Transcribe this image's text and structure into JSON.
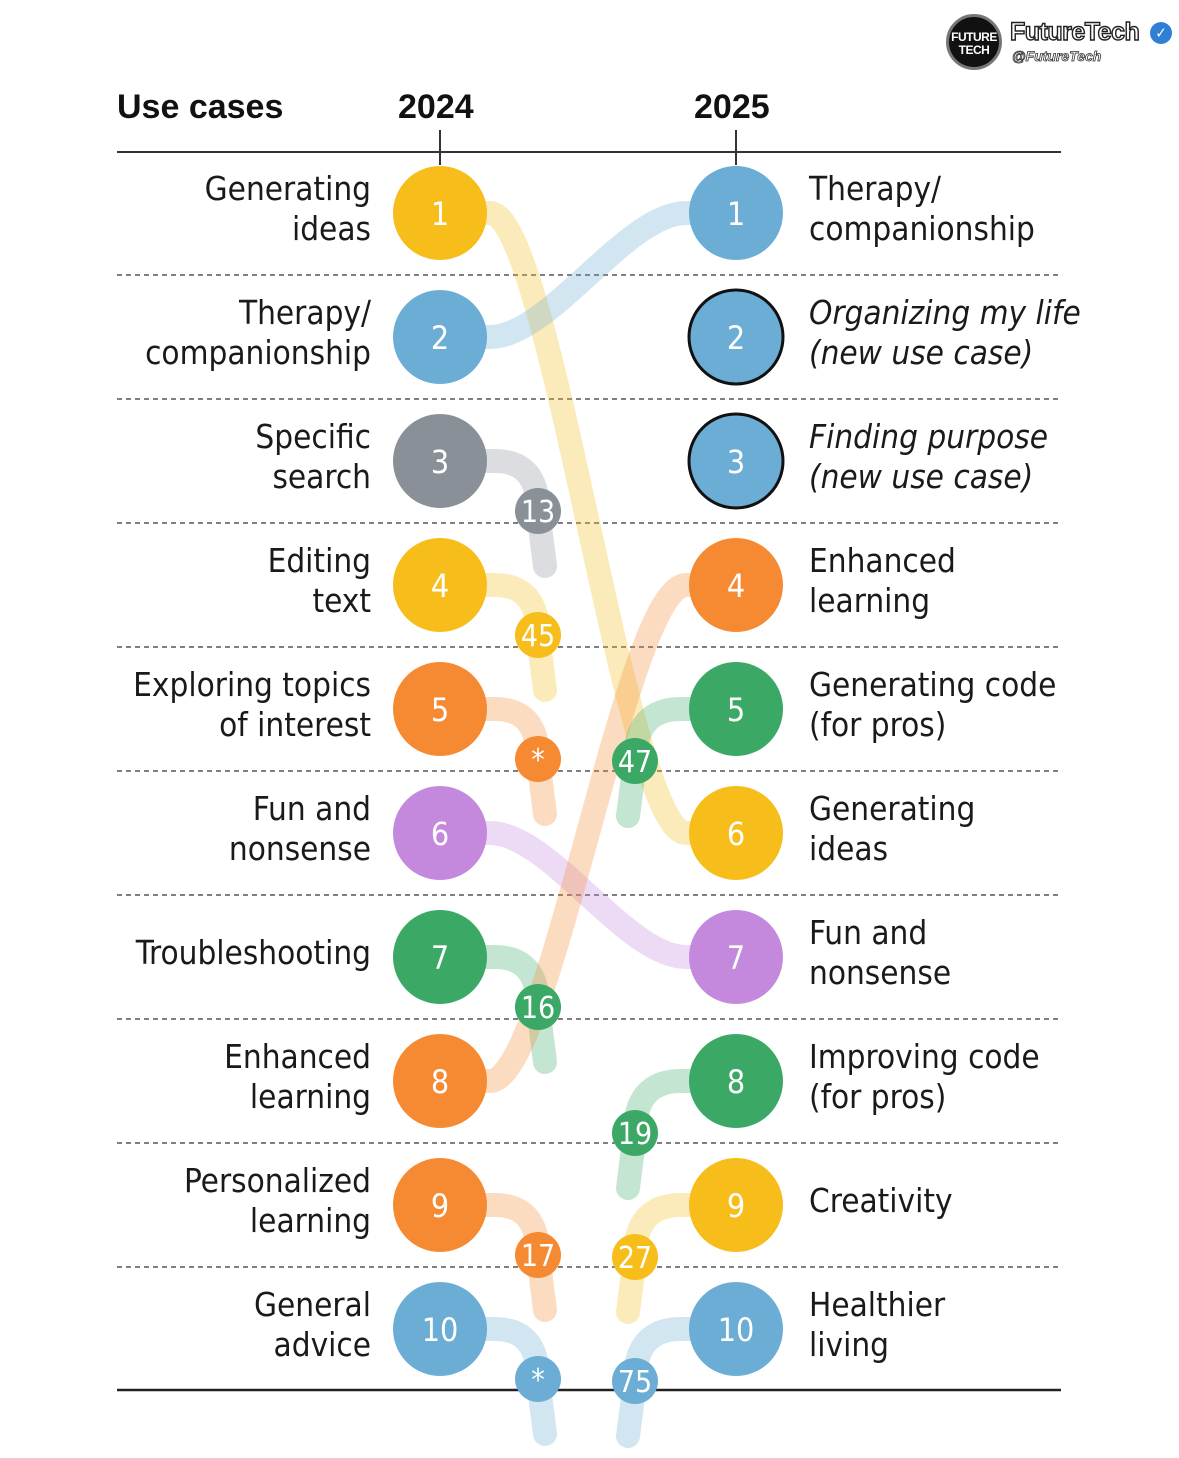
{
  "brand": {
    "name": "FutureTech",
    "handle": "@FutureTech",
    "logo_text_top": "FUTURE",
    "logo_text_bottom": "TECH",
    "verified_icon": "verified-check-icon"
  },
  "headers": {
    "use_cases": "Use cases",
    "year_left": "2024",
    "year_right": "2025"
  },
  "colors": {
    "yellow": "#f6bd1b",
    "blue": "#6badd5",
    "gray": "#8a9097",
    "orange": "#f58a32",
    "purple": "#c489dd",
    "green": "#3ba866"
  },
  "ranks_2024": [
    {
      "rank": "1",
      "label": "Generating\nideas",
      "color": "yellow",
      "rank_2025": "6"
    },
    {
      "rank": "2",
      "label": "Therapy/\ncompanionship",
      "color": "blue",
      "rank_2025": "1"
    },
    {
      "rank": "3",
      "label": "Specific\nsearch",
      "color": "gray",
      "rank_2025": "13"
    },
    {
      "rank": "4",
      "label": "Editing\ntext",
      "color": "yellow",
      "rank_2025": "45"
    },
    {
      "rank": "5",
      "label": "Exploring topics\nof interest",
      "color": "orange",
      "rank_2025": "*"
    },
    {
      "rank": "6",
      "label": "Fun and\nnonsense",
      "color": "purple",
      "rank_2025": "7"
    },
    {
      "rank": "7",
      "label": "Troubleshooting",
      "color": "green",
      "rank_2025": "16"
    },
    {
      "rank": "8",
      "label": "Enhanced\nlearning",
      "color": "orange",
      "rank_2025": "4"
    },
    {
      "rank": "9",
      "label": "Personalized\nlearning",
      "color": "orange",
      "rank_2025": "17"
    },
    {
      "rank": "10",
      "label": "General\nadvice",
      "color": "blue",
      "rank_2025": "*"
    }
  ],
  "ranks_2025": [
    {
      "rank": "1",
      "label": "Therapy/\ncompanionship",
      "color": "blue",
      "new_use_case": false,
      "rank_2024": "2"
    },
    {
      "rank": "2",
      "label": "Organizing my life\n(new use case)",
      "color": "blue",
      "new_use_case": true,
      "rank_2024": ""
    },
    {
      "rank": "3",
      "label": "Finding purpose\n(new use case)",
      "color": "blue",
      "new_use_case": true,
      "rank_2024": ""
    },
    {
      "rank": "4",
      "label": "Enhanced\nlearning",
      "color": "orange",
      "new_use_case": false,
      "rank_2024": "8"
    },
    {
      "rank": "5",
      "label": "Generating code\n(for pros)",
      "color": "green",
      "new_use_case": false,
      "rank_2024": "47"
    },
    {
      "rank": "6",
      "label": "Generating\nideas",
      "color": "yellow",
      "new_use_case": false,
      "rank_2024": "1"
    },
    {
      "rank": "7",
      "label": "Fun and\nnonsense",
      "color": "purple",
      "new_use_case": false,
      "rank_2024": "6"
    },
    {
      "rank": "8",
      "label": "Improving code\n(for pros)",
      "color": "green",
      "new_use_case": false,
      "rank_2024": "19"
    },
    {
      "rank": "9",
      "label": "Creativity",
      "color": "yellow",
      "new_use_case": false,
      "rank_2024": "27"
    },
    {
      "rank": "10",
      "label": "Healthier\nliving",
      "color": "blue",
      "new_use_case": false,
      "rank_2024": "75"
    }
  ]
}
